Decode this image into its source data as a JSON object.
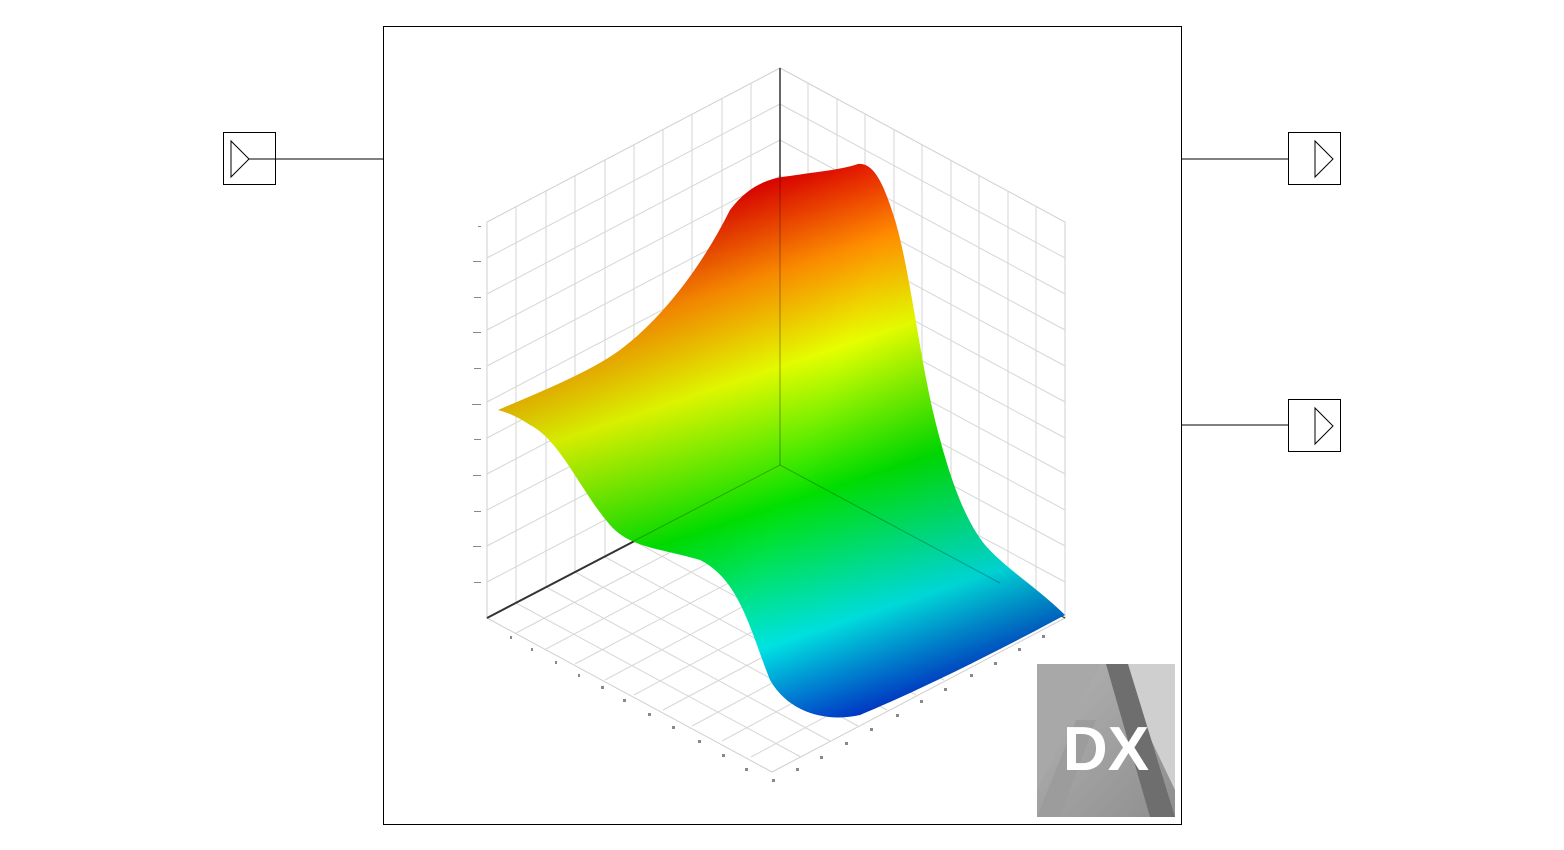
{
  "block": {
    "inputs": [
      {
        "name": "input-port-1"
      }
    ],
    "outputs": [
      {
        "name": "output-port-1"
      },
      {
        "name": "output-port-2"
      }
    ],
    "logo": {
      "text": "DX",
      "icon": "dx-logo"
    }
  },
  "surface": {
    "type": "3d-surface",
    "colormap": [
      "#0000c8",
      "#00e5e5",
      "#00e000",
      "#e6ff00",
      "#ff8c00",
      "#e00000"
    ],
    "grid": true
  },
  "colors": {
    "frame": "#000000",
    "grid": "#d6d6d6",
    "axis": "#222222",
    "logo_light": "#c8c8c8",
    "logo_dark": "#8c8c8c"
  }
}
